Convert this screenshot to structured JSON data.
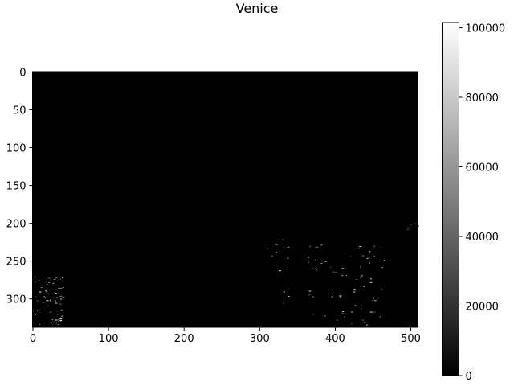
{
  "chart_data": {
    "type": "heatmap",
    "title": "Venice",
    "xlabel": "",
    "ylabel": "",
    "colormap": "gray",
    "image_shape": [
      338,
      510
    ],
    "xlim": [
      -0.5,
      509.5
    ],
    "ylim": [
      337.5,
      -0.5
    ],
    "xticks": [
      0,
      100,
      200,
      300,
      400,
      500
    ],
    "yticks": [
      0,
      50,
      100,
      150,
      200,
      250,
      300
    ],
    "color_range": [
      0,
      101500
    ],
    "colorbar_ticks": [
      0,
      20000,
      40000,
      60000,
      80000,
      100000
    ],
    "background_value": 0,
    "bright_regions": [
      {
        "x_range": [
          0,
          40
        ],
        "y_range": [
          270,
          335
        ],
        "level": "moderate"
      },
      {
        "x_range": [
          310,
          340
        ],
        "y_range": [
          220,
          315
        ],
        "level": "sparse"
      },
      {
        "x_range": [
          360,
          465
        ],
        "y_range": [
          225,
          338
        ],
        "level": "moderate"
      },
      {
        "x_range": [
          495,
          509
        ],
        "y_range": [
          196,
          210
        ],
        "level": "faint"
      }
    ]
  }
}
